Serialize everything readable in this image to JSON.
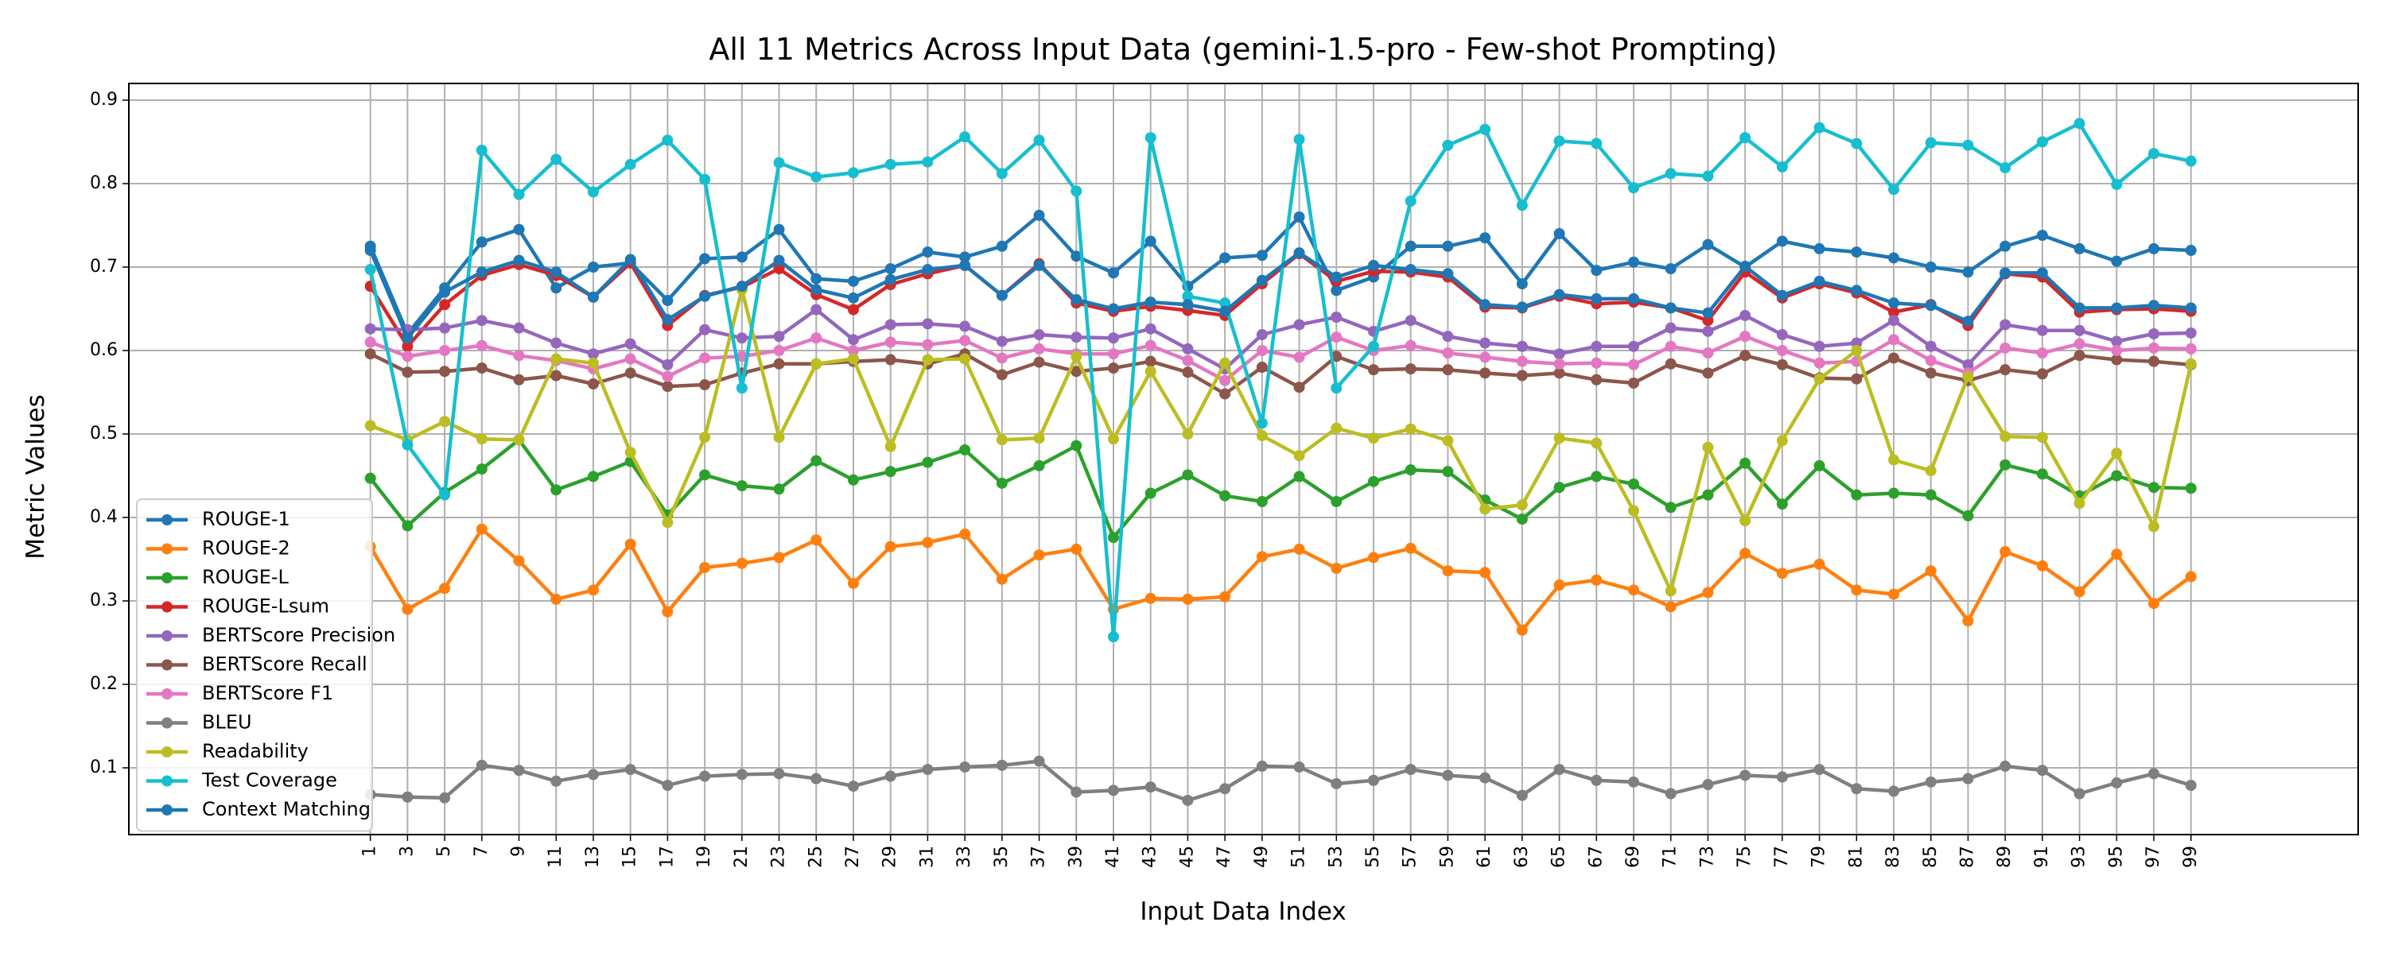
{
  "chart_data": {
    "type": "line",
    "title": "All 11 Metrics Across Input Data (gemini-1.5-pro - Few-shot Prompting)",
    "xlabel": "Input Data Index",
    "ylabel": "Metric Values",
    "x": [
      1,
      3,
      5,
      7,
      9,
      11,
      13,
      15,
      17,
      19,
      21,
      23,
      25,
      27,
      29,
      31,
      33,
      35,
      37,
      39,
      41,
      43,
      45,
      47,
      49,
      51,
      53,
      55,
      57,
      59,
      61,
      63,
      65,
      67,
      69,
      71,
      73,
      75,
      77,
      79,
      81,
      83,
      85,
      87,
      89,
      91,
      93,
      95,
      97,
      99
    ],
    "xlim": [
      -12,
      108
    ],
    "ylim": [
      0.02,
      0.92
    ],
    "yticks": [
      0.1,
      0.2,
      0.3,
      0.4,
      0.5,
      0.6,
      0.7,
      0.8,
      0.9
    ],
    "grid": true,
    "legend_position": "lower-left",
    "series": [
      {
        "name": "ROUGE-1",
        "color": "#1f77b4",
        "values": [
          0.725,
          0.62,
          0.675,
          0.73,
          0.745,
          0.675,
          0.7,
          0.705,
          0.66,
          0.71,
          0.712,
          0.745,
          0.686,
          0.683,
          0.698,
          0.718,
          0.712,
          0.725,
          0.762,
          0.713,
          0.693,
          0.731,
          0.677,
          0.711,
          0.714,
          0.76,
          0.672,
          0.688,
          0.725,
          0.725,
          0.735,
          0.68,
          0.74,
          0.696,
          0.706,
          0.698,
          0.727,
          0.7,
          0.731,
          0.722,
          0.718,
          0.711,
          0.7,
          0.694,
          0.725,
          0.738,
          0.722,
          0.707,
          0.722,
          0.72
        ]
      },
      {
        "name": "ROUGE-2",
        "color": "#ff7f0e",
        "values": [
          0.365,
          0.29,
          0.315,
          0.386,
          0.348,
          0.302,
          0.313,
          0.368,
          0.287,
          0.34,
          0.345,
          0.352,
          0.373,
          0.321,
          0.365,
          0.37,
          0.38,
          0.326,
          0.355,
          0.362,
          0.29,
          0.303,
          0.302,
          0.305,
          0.353,
          0.362,
          0.339,
          0.352,
          0.363,
          0.336,
          0.334,
          0.265,
          0.319,
          0.325,
          0.313,
          0.293,
          0.31,
          0.357,
          0.333,
          0.344,
          0.313,
          0.308,
          0.336,
          0.276,
          0.359,
          0.342,
          0.311,
          0.356,
          0.297,
          0.329
        ]
      },
      {
        "name": "ROUGE-L",
        "color": "#2ca02c",
        "values": [
          0.447,
          0.39,
          0.43,
          0.458,
          0.493,
          0.433,
          0.449,
          0.467,
          0.403,
          0.451,
          0.438,
          0.434,
          0.468,
          0.445,
          0.455,
          0.466,
          0.481,
          0.441,
          0.462,
          0.486,
          0.376,
          0.429,
          0.451,
          0.426,
          0.419,
          0.449,
          0.419,
          0.443,
          0.457,
          0.455,
          0.421,
          0.398,
          0.436,
          0.449,
          0.44,
          0.412,
          0.427,
          0.465,
          0.416,
          0.462,
          0.427,
          0.429,
          0.427,
          0.402,
          0.463,
          0.452,
          0.426,
          0.45,
          0.436,
          0.435
        ]
      },
      {
        "name": "ROUGE-Lsum",
        "color": "#d62728",
        "values": [
          0.677,
          0.605,
          0.655,
          0.69,
          0.703,
          0.69,
          0.664,
          0.705,
          0.63,
          0.666,
          0.676,
          0.698,
          0.667,
          0.649,
          0.679,
          0.692,
          0.702,
          0.666,
          0.704,
          0.657,
          0.647,
          0.653,
          0.648,
          0.642,
          0.68,
          0.716,
          0.683,
          0.695,
          0.694,
          0.688,
          0.652,
          0.651,
          0.665,
          0.656,
          0.658,
          0.651,
          0.636,
          0.694,
          0.663,
          0.68,
          0.669,
          0.646,
          0.655,
          0.63,
          0.692,
          0.688,
          0.646,
          0.649,
          0.65,
          0.647
        ]
      },
      {
        "name": "BERTScore Precision",
        "color": "#9467bd",
        "values": [
          0.626,
          0.625,
          0.627,
          0.636,
          0.627,
          0.609,
          0.596,
          0.608,
          0.583,
          0.625,
          0.615,
          0.617,
          0.649,
          0.613,
          0.631,
          0.632,
          0.629,
          0.611,
          0.619,
          0.616,
          0.615,
          0.626,
          0.602,
          0.578,
          0.619,
          0.631,
          0.64,
          0.623,
          0.636,
          0.617,
          0.609,
          0.605,
          0.596,
          0.605,
          0.605,
          0.627,
          0.623,
          0.642,
          0.619,
          0.605,
          0.609,
          0.636,
          0.605,
          0.583,
          0.631,
          0.624,
          0.624,
          0.611,
          0.62,
          0.621
        ]
      },
      {
        "name": "BERTScore Recall",
        "color": "#8c564b",
        "values": [
          0.596,
          0.574,
          0.575,
          0.579,
          0.565,
          0.57,
          0.56,
          0.573,
          0.557,
          0.559,
          0.573,
          0.584,
          0.584,
          0.587,
          0.589,
          0.584,
          0.596,
          0.571,
          0.586,
          0.575,
          0.579,
          0.587,
          0.574,
          0.548,
          0.58,
          0.556,
          0.593,
          0.577,
          0.578,
          0.577,
          0.573,
          0.57,
          0.573,
          0.565,
          0.561,
          0.584,
          0.573,
          0.594,
          0.583,
          0.567,
          0.566,
          0.591,
          0.573,
          0.564,
          0.577,
          0.572,
          0.594,
          0.589,
          0.587,
          0.583
        ]
      },
      {
        "name": "BERTScore F1",
        "color": "#e377c2",
        "values": [
          0.61,
          0.593,
          0.6,
          0.606,
          0.594,
          0.588,
          0.578,
          0.59,
          0.569,
          0.591,
          0.593,
          0.6,
          0.615,
          0.6,
          0.61,
          0.607,
          0.612,
          0.591,
          0.602,
          0.596,
          0.596,
          0.606,
          0.588,
          0.564,
          0.6,
          0.592,
          0.616,
          0.6,
          0.606,
          0.597,
          0.592,
          0.587,
          0.584,
          0.585,
          0.583,
          0.605,
          0.597,
          0.617,
          0.6,
          0.585,
          0.587,
          0.613,
          0.588,
          0.573,
          0.603,
          0.597,
          0.608,
          0.6,
          0.603,
          0.602
        ]
      },
      {
        "name": "BLEU",
        "color": "#7f7f7f",
        "values": [
          0.068,
          0.065,
          0.064,
          0.103,
          0.097,
          0.084,
          0.092,
          0.098,
          0.079,
          0.09,
          0.092,
          0.093,
          0.087,
          0.078,
          0.09,
          0.098,
          0.101,
          0.103,
          0.108,
          0.071,
          0.073,
          0.077,
          0.061,
          0.075,
          0.102,
          0.101,
          0.081,
          0.085,
          0.098,
          0.091,
          0.088,
          0.067,
          0.098,
          0.085,
          0.083,
          0.069,
          0.08,
          0.091,
          0.089,
          0.098,
          0.075,
          0.072,
          0.083,
          0.087,
          0.102,
          0.097,
          0.069,
          0.082,
          0.093,
          0.079
        ]
      },
      {
        "name": "Readability",
        "color": "#bcbd22",
        "values": [
          0.51,
          0.493,
          0.515,
          0.494,
          0.493,
          0.59,
          0.585,
          0.478,
          0.394,
          0.496,
          0.673,
          0.496,
          0.584,
          0.59,
          0.485,
          0.589,
          0.59,
          0.493,
          0.495,
          0.593,
          0.494,
          0.575,
          0.5,
          0.585,
          0.498,
          0.474,
          0.507,
          0.495,
          0.506,
          0.492,
          0.41,
          0.415,
          0.495,
          0.489,
          0.408,
          0.312,
          0.484,
          0.396,
          0.492,
          0.566,
          0.6,
          0.469,
          0.456,
          0.569,
          0.497,
          0.496,
          0.417,
          0.477,
          0.389,
          0.584
        ]
      },
      {
        "name": "Test Coverage",
        "color": "#17becf",
        "values": [
          0.697,
          0.487,
          0.427,
          0.84,
          0.787,
          0.829,
          0.79,
          0.823,
          0.852,
          0.805,
          0.555,
          0.825,
          0.808,
          0.813,
          0.823,
          0.826,
          0.856,
          0.812,
          0.852,
          0.791,
          0.257,
          0.855,
          0.665,
          0.657,
          0.513,
          0.853,
          0.555,
          0.605,
          0.779,
          0.846,
          0.865,
          0.774,
          0.851,
          0.848,
          0.795,
          0.812,
          0.809,
          0.855,
          0.82,
          0.867,
          0.848,
          0.793,
          0.849,
          0.846,
          0.819,
          0.85,
          0.872,
          0.799,
          0.836,
          0.827
        ]
      },
      {
        "name": "Context Matching",
        "color": "#1f77b4",
        "values": [
          0.72,
          0.615,
          0.67,
          0.694,
          0.708,
          0.694,
          0.664,
          0.709,
          0.637,
          0.665,
          0.677,
          0.708,
          0.673,
          0.663,
          0.685,
          0.697,
          0.702,
          0.666,
          0.702,
          0.661,
          0.65,
          0.658,
          0.655,
          0.647,
          0.684,
          0.717,
          0.688,
          0.702,
          0.697,
          0.692,
          0.655,
          0.652,
          0.667,
          0.662,
          0.662,
          0.651,
          0.645,
          0.701,
          0.666,
          0.683,
          0.672,
          0.657,
          0.654,
          0.635,
          0.693,
          0.693,
          0.651,
          0.651,
          0.654,
          0.651
        ]
      }
    ]
  }
}
